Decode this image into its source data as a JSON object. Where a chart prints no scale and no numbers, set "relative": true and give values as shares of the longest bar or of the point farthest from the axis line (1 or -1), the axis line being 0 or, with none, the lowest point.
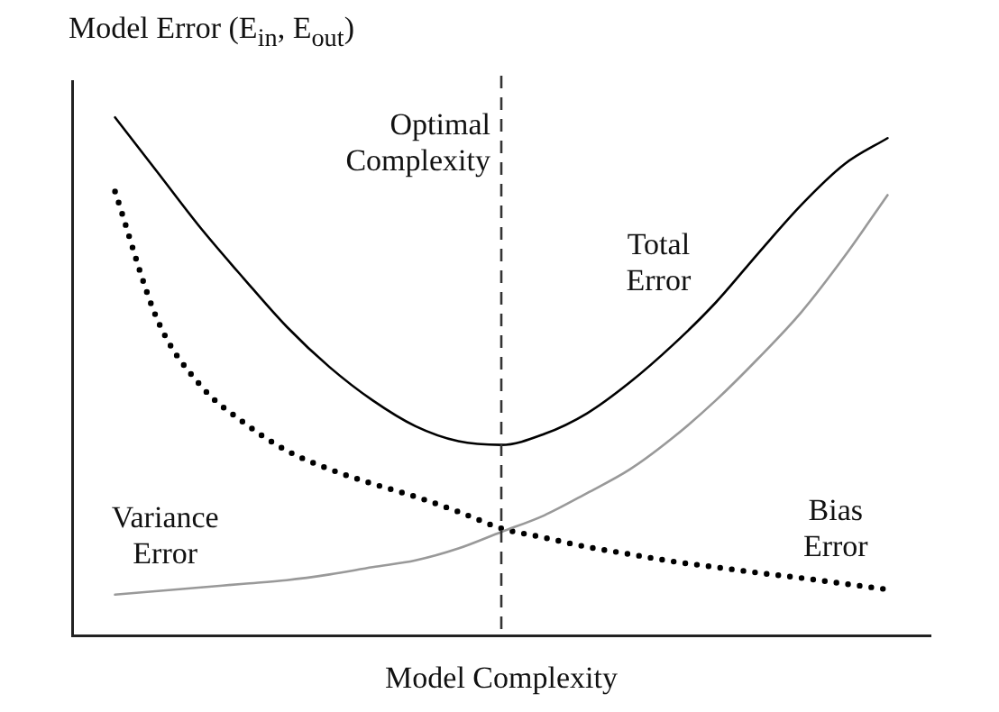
{
  "chart_data": {
    "type": "line",
    "relative": true,
    "ylabel": "Model Error (E$_{in}$, E$_{out}$)",
    "xlabel": "Model Complexity",
    "categories": [
      null,
      null,
      null,
      null,
      null,
      null,
      null,
      null,
      null,
      null,
      null,
      null,
      null,
      null,
      null,
      null,
      null,
      null,
      null,
      null,
      null
    ],
    "series": [
      {
        "name": "Total Error",
        "color": "#000000",
        "line_style": "solid",
        "values": [
          null,
          1,
          0.893,
          0.786,
          0.689,
          0.596,
          0.518,
          0.454,
          0.404,
          0.375,
          0.368,
          0.389,
          0.429,
          0.489,
          0.561,
          0.643,
          0.739,
          0.832,
          0.91,
          0.96,
          null
        ]
      },
      {
        "name": "Variance Error",
        "color": "#999999",
        "line_style": "solid",
        "values": [
          null,
          0.079,
          0.086,
          0.093,
          0.1,
          0.107,
          0.118,
          0.132,
          0.145,
          0.168,
          0.2,
          0.232,
          0.275,
          0.321,
          0.382,
          0.454,
          0.536,
          0.625,
          0.732,
          0.85,
          null
        ]
      },
      {
        "name": "Bias Error",
        "color": "#000000",
        "line_style": "dotted",
        "values": [
          null,
          0.857,
          0.607,
          0.482,
          0.411,
          0.357,
          0.321,
          0.293,
          0.268,
          0.239,
          0.207,
          0.189,
          0.171,
          0.157,
          0.143,
          0.132,
          0.121,
          0.111,
          0.1,
          0.089,
          null
        ]
      }
    ],
    "annotations": [
      "Optimal Complexity"
    ],
    "grid": false,
    "legend": false,
    "marker": "none",
    "tick_labels": false
  }
}
